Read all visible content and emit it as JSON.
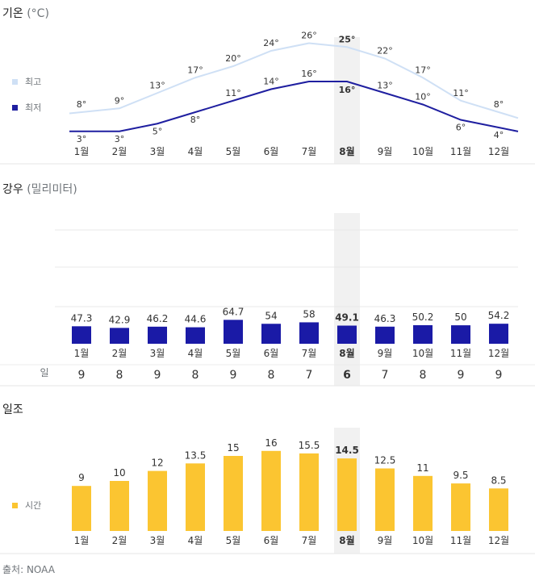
{
  "temp_section": {
    "title": "기온",
    "unit": "(°C)"
  },
  "rain_section": {
    "title": "강우",
    "unit": "(밀리미터)",
    "days_label": "일"
  },
  "sun_section": {
    "title": "일조"
  },
  "source": "출처: NOAA",
  "colors": {
    "high": "#cfe0f5",
    "low": "#1f1fa0",
    "rain": "#1a1aa6",
    "sun": "#fbc531",
    "highlight": "#f1f1f1",
    "text": "#333333",
    "muted": "#70757a"
  },
  "chart_data": [
    {
      "type": "line",
      "categories": [
        "1월",
        "2월",
        "3월",
        "4월",
        "5월",
        "6월",
        "7월",
        "8월",
        "9월",
        "10월",
        "11월",
        "12월"
      ],
      "series": [
        {
          "name": "최고",
          "values": [
            8,
            9,
            13,
            17,
            20,
            24,
            26,
            25,
            22,
            17,
            11,
            8
          ]
        },
        {
          "name": "최저",
          "values": [
            3,
            3,
            5,
            8,
            11,
            14,
            16,
            16,
            13,
            10,
            6,
            4
          ]
        }
      ],
      "value_suffix": "°",
      "highlight_index": 7,
      "legend_position": "left"
    },
    {
      "type": "bar",
      "categories": [
        "1월",
        "2월",
        "3월",
        "4월",
        "5월",
        "6월",
        "7월",
        "8월",
        "9월",
        "10월",
        "11월",
        "12월"
      ],
      "values": [
        47.3,
        42.9,
        46.2,
        44.6,
        64.7,
        54,
        58,
        49.1,
        46.3,
        50.2,
        50,
        54.2
      ],
      "value_labels": [
        "47.3",
        "42.9",
        "46.2",
        "44.6",
        "64.7",
        "54",
        "58",
        "49.1",
        "46.3",
        "50.2",
        "50",
        "54.2"
      ],
      "days": [
        "9",
        "8",
        "9",
        "8",
        "9",
        "8",
        "7",
        "6",
        "7",
        "8",
        "9",
        "9"
      ],
      "highlight_index": 7
    },
    {
      "type": "bar",
      "categories": [
        "1월",
        "2월",
        "3월",
        "4월",
        "5월",
        "6월",
        "7월",
        "8월",
        "9월",
        "10월",
        "11월",
        "12월"
      ],
      "series": [
        {
          "name": "시간",
          "values": [
            9,
            10,
            12,
            13.5,
            15,
            16,
            15.5,
            14.5,
            12.5,
            11,
            9.5,
            8.5
          ]
        }
      ],
      "value_labels": [
        "9",
        "10",
        "12",
        "13.5",
        "15",
        "16",
        "15.5",
        "14.5",
        "12.5",
        "11",
        "9.5",
        "8.5"
      ],
      "highlight_index": 7,
      "legend_position": "left"
    }
  ]
}
